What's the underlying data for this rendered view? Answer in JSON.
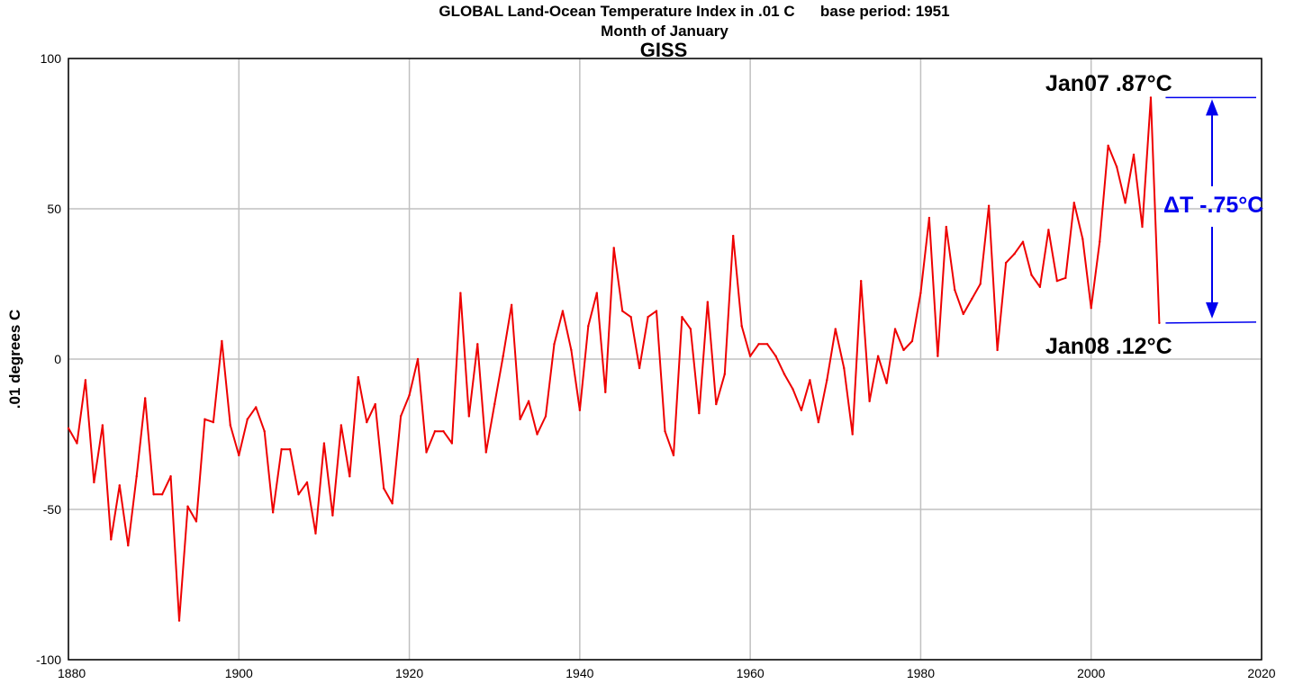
{
  "chart_data": {
    "type": "line",
    "title": "GLOBAL Land-Ocean Temperature Index in .01 C      base period: 1951",
    "subtitle": "Month of January",
    "source_label": "GISS",
    "ylabel": ".01 degrees C",
    "xlabel": "",
    "xlim": [
      1880,
      2020
    ],
    "ylim": [
      -100,
      100
    ],
    "x_ticks": [
      "1880",
      "1900",
      "1920",
      "1940",
      "1960",
      "1980",
      "2000",
      "2020"
    ],
    "y_ticks": [
      "100",
      "50",
      "0",
      "-50",
      "-100"
    ],
    "grid": true,
    "series": [
      {
        "color": "#ee0000",
        "x": [
          1880,
          1881,
          1882,
          1883,
          1884,
          1885,
          1886,
          1887,
          1888,
          1889,
          1890,
          1891,
          1892,
          1893,
          1894,
          1895,
          1896,
          1897,
          1898,
          1899,
          1900,
          1901,
          1902,
          1903,
          1904,
          1905,
          1906,
          1907,
          1908,
          1909,
          1910,
          1911,
          1912,
          1913,
          1914,
          1915,
          1916,
          1917,
          1918,
          1919,
          1920,
          1921,
          1922,
          1923,
          1924,
          1925,
          1926,
          1927,
          1928,
          1929,
          1930,
          1931,
          1932,
          1933,
          1934,
          1935,
          1936,
          1937,
          1938,
          1939,
          1940,
          1941,
          1942,
          1943,
          1944,
          1945,
          1946,
          1947,
          1948,
          1949,
          1950,
          1951,
          1952,
          1953,
          1954,
          1955,
          1956,
          1957,
          1958,
          1959,
          1960,
          1961,
          1962,
          1963,
          1964,
          1965,
          1966,
          1967,
          1968,
          1969,
          1970,
          1971,
          1972,
          1973,
          1974,
          1975,
          1976,
          1977,
          1978,
          1979,
          1980,
          1981,
          1982,
          1983,
          1984,
          1985,
          1986,
          1987,
          1988,
          1989,
          1990,
          1991,
          1992,
          1993,
          1994,
          1995,
          1996,
          1997,
          1998,
          1999,
          2000,
          2001,
          2002,
          2003,
          2004,
          2005,
          2006,
          2007,
          2008
        ],
        "values": [
          -23,
          -28,
          -7,
          -41,
          -22,
          -60,
          -42,
          -62,
          -39,
          -13,
          -45,
          -45,
          -39,
          -87,
          -49,
          -54,
          -20,
          -21,
          6,
          -22,
          -32,
          -20,
          -16,
          -24,
          -51,
          -30,
          -30,
          -45,
          -41,
          -58,
          -28,
          -52,
          -22,
          -39,
          -6,
          -21,
          -15,
          -43,
          -48,
          -19,
          -12,
          0,
          -31,
          -24,
          -24,
          -28,
          22,
          -19,
          5,
          -31,
          -15,
          1,
          18,
          -20,
          -14,
          -25,
          -19,
          5,
          16,
          3,
          -17,
          11,
          22,
          -11,
          37,
          16,
          14,
          -3,
          14,
          16,
          -24,
          -32,
          14,
          10,
          -18,
          19,
          -15,
          -5,
          41,
          11,
          1,
          5,
          5,
          1,
          -5,
          -10,
          -17,
          -7,
          -21,
          -7,
          10,
          -3,
          -25,
          26,
          -14,
          1,
          -8,
          10,
          3,
          6,
          22,
          47,
          1,
          44,
          23,
          15,
          20,
          25,
          51,
          3,
          32,
          35,
          39,
          28,
          24,
          43,
          26,
          27,
          52,
          40,
          17,
          39,
          71,
          64,
          52,
          68,
          44,
          87,
          12
        ]
      }
    ],
    "annotations": {
      "high_label": "Jan07 .87°C",
      "low_label": "Jan08 .12°C",
      "delta_label": "ΔT -.75°C",
      "high_value": 87,
      "low_value": 12,
      "color": "#0000ee"
    }
  }
}
